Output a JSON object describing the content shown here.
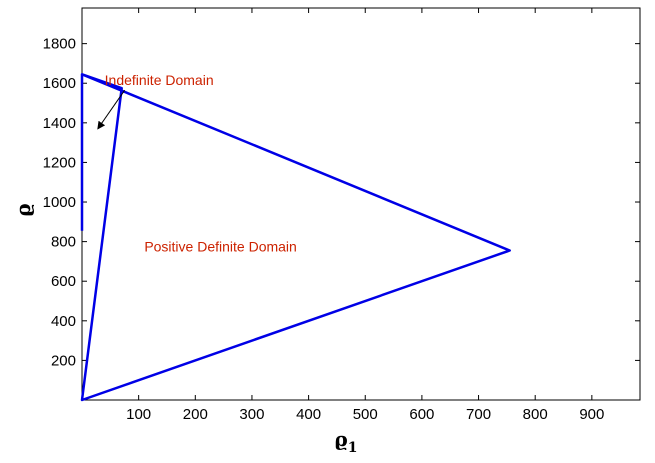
{
  "chart_data": {
    "type": "line",
    "title": "",
    "xlabel": "ϱ",
    "xlabel_sub": "1",
    "ylabel": "ϱ",
    "xlim": [
      0,
      985
    ],
    "ylim": [
      0,
      1980
    ],
    "x_ticks": [
      100,
      200,
      300,
      400,
      500,
      600,
      700,
      800,
      900
    ],
    "y_ticks": [
      200,
      400,
      600,
      800,
      1000,
      1200,
      1400,
      1600,
      1800
    ],
    "grid": false,
    "line_color": "#0000e6",
    "series": [
      {
        "x": [
          0,
          755,
          0,
          70,
          0,
          0
        ],
        "y": [
          1645,
          755,
          0,
          1575,
          1645,
          855
        ]
      }
    ],
    "annotations": [
      {
        "text": "Indefinite Domain",
        "x": 40,
        "y": 1590,
        "color": "#cc2200",
        "arrow_to": [
          28,
          1370
        ]
      },
      {
        "text": "Positive Definite Domain",
        "x": 110,
        "y": 750,
        "color": "#cc2200"
      }
    ]
  }
}
